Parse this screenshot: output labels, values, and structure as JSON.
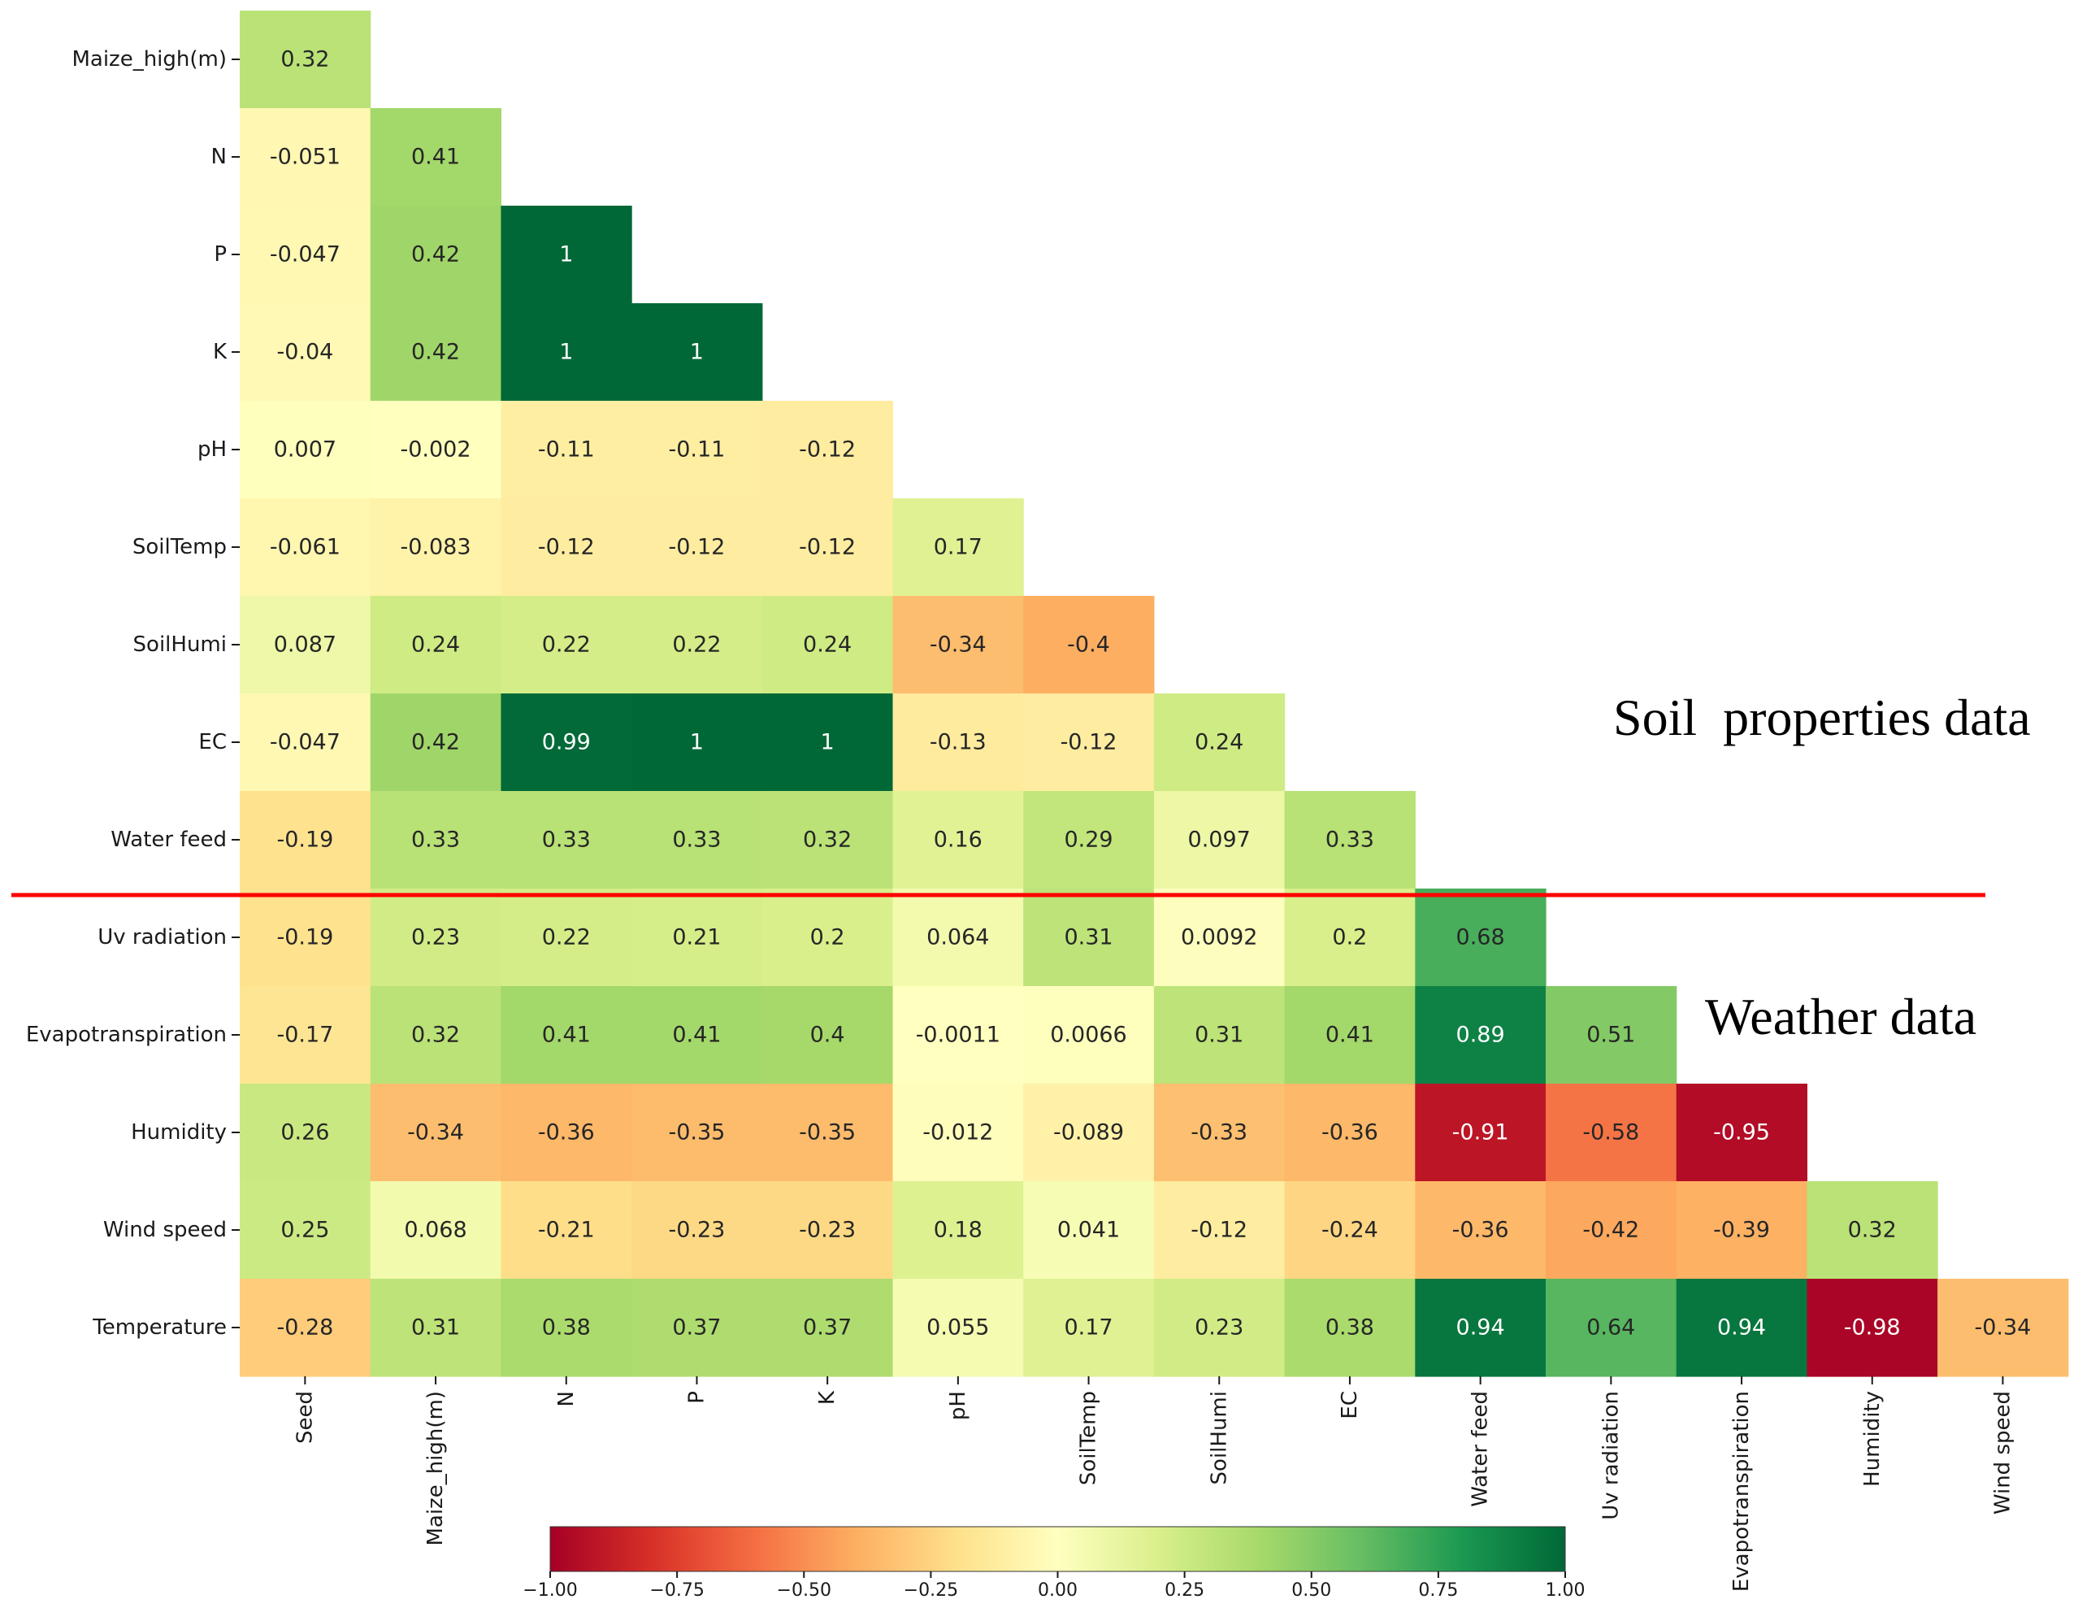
{
  "chart_data": {
    "type": "heatmap",
    "subtype": "lower-triangular correlation matrix",
    "x_labels": [
      "Seed",
      "Maize_high(m)",
      "N",
      "P",
      "K",
      "pH",
      "SoilTemp",
      "SoilHumi",
      "EC",
      "Water feed",
      "Uv radiation",
      "Evapotranspiration",
      "Humidity",
      "Wind speed"
    ],
    "y_labels": [
      "Maize_high(m)",
      "N",
      "P",
      "K",
      "pH",
      "SoilTemp",
      "SoilHumi",
      "EC",
      "Water feed",
      "Uv radiation",
      "Evapotranspiration",
      "Humidity",
      "Wind speed",
      "Temperature"
    ],
    "values": [
      [
        0.32
      ],
      [
        -0.051,
        0.41
      ],
      [
        -0.047,
        0.42,
        1
      ],
      [
        -0.04,
        0.42,
        1,
        1
      ],
      [
        0.007,
        -0.002,
        -0.11,
        -0.11,
        -0.12
      ],
      [
        -0.061,
        -0.083,
        -0.12,
        -0.12,
        -0.12,
        0.17
      ],
      [
        0.087,
        0.24,
        0.22,
        0.22,
        0.24,
        -0.34,
        -0.4
      ],
      [
        -0.047,
        0.42,
        0.99,
        1,
        1,
        -0.13,
        -0.12,
        0.24
      ],
      [
        -0.19,
        0.33,
        0.33,
        0.33,
        0.32,
        0.16,
        0.29,
        0.097,
        0.33
      ],
      [
        -0.19,
        0.23,
        0.22,
        0.21,
        0.2,
        0.064,
        0.31,
        0.0092,
        0.2,
        0.68
      ],
      [
        -0.17,
        0.32,
        0.41,
        0.41,
        0.4,
        -0.0011,
        0.0066,
        0.31,
        0.41,
        0.89,
        0.51
      ],
      [
        0.26,
        -0.34,
        -0.36,
        -0.35,
        -0.35,
        -0.012,
        -0.089,
        -0.33,
        -0.36,
        -0.91,
        -0.58,
        -0.95
      ],
      [
        0.25,
        0.068,
        -0.21,
        -0.23,
        -0.23,
        0.18,
        0.041,
        -0.12,
        -0.24,
        -0.36,
        -0.42,
        -0.39,
        0.32
      ],
      [
        -0.28,
        0.31,
        0.38,
        0.37,
        0.37,
        0.055,
        0.17,
        0.23,
        0.38,
        0.94,
        0.64,
        0.94,
        -0.98,
        -0.34
      ]
    ],
    "colormap": "RdYlGn",
    "vmin": -1,
    "vmax": 1,
    "colorbar": {
      "orientation": "horizontal",
      "ticks": [
        -1.0,
        -0.75,
        -0.5,
        -0.25,
        0.0,
        0.25,
        0.5,
        0.75,
        1.0
      ],
      "tick_labels": [
        "−1.00",
        "−0.75",
        "−0.50",
        "−0.25",
        "0.00",
        "0.25",
        "0.50",
        "0.75",
        "1.00"
      ]
    },
    "separator": {
      "between_rows": [
        "Water feed",
        "Uv radiation"
      ],
      "color": "#ff0000"
    },
    "annotations": [
      "Soil  properties data",
      "Weather data"
    ]
  }
}
